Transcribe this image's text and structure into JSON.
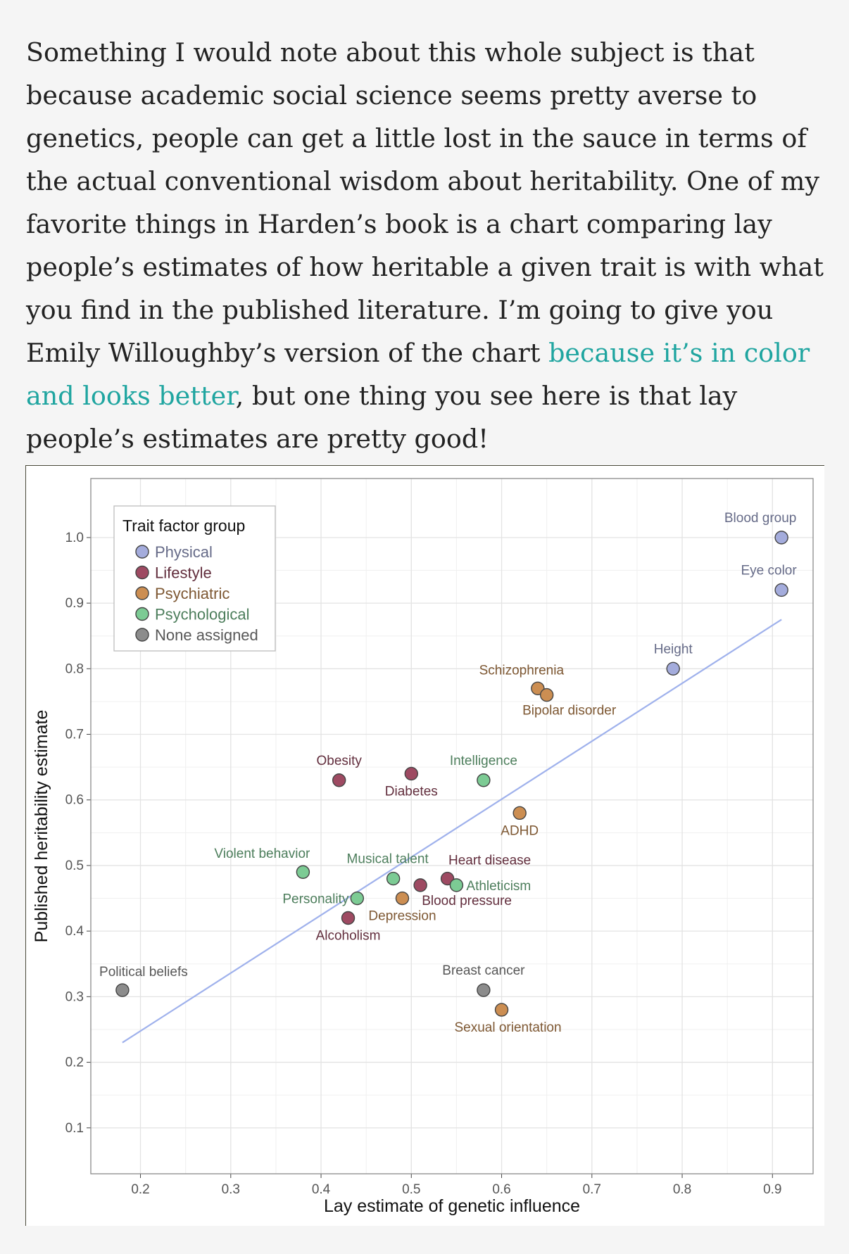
{
  "article": {
    "text_before": "Something I would note about this whole subject is that because academic social science seems pretty averse to genetics, people can get a little lost in the sauce in terms of the actual conventional wisdom about heritability. One of my favorite things in Harden’s book is a chart comparing lay people’s estimates of how heritable a given trait is with what you find in the published literature. I’m going to give you Emily Willoughby’s version of the chart ",
    "link_text": "because it’s in color and looks better",
    "text_after": ", but one thing you see here is that lay people’s estimates are pretty good!"
  },
  "colors": {
    "link": "#1fa5a0",
    "Physical": "#a4acdc",
    "Lifestyle": "#9e4a62",
    "Psychiatric": "#cc8e52",
    "Psychological": "#7ccb94",
    "None assigned": "#8c8c8c",
    "trend": "#9fb1ec"
  },
  "chart_data": {
    "type": "scatter",
    "xlabel": "Lay estimate of genetic influence",
    "ylabel": "Published heritability estimate",
    "xlim": [
      0.145,
      0.945
    ],
    "ylim": [
      0.03,
      1.09
    ],
    "xticks": [
      0.2,
      0.3,
      0.4,
      0.5,
      0.6,
      0.7,
      0.8,
      0.9
    ],
    "yticks": [
      0.1,
      0.2,
      0.3,
      0.4,
      0.5,
      0.6,
      0.7,
      0.8,
      0.9,
      1.0
    ],
    "xtick_labels": [
      "0.2",
      "0.3",
      "0.4",
      "0.5",
      "0.6",
      "0.7",
      "0.8",
      "0.9"
    ],
    "ytick_labels": [
      "0.1",
      "0.2",
      "0.3",
      "0.4",
      "0.5",
      "0.6",
      "0.7",
      "0.8",
      "0.9",
      "1.0"
    ],
    "grid": true,
    "legend": {
      "title": "Trait factor group",
      "placement": "top-left",
      "entries": [
        "Physical",
        "Lifestyle",
        "Psychiatric",
        "Psychological",
        "None assigned"
      ]
    },
    "trend_line": {
      "x": [
        0.18,
        0.91
      ],
      "y": [
        0.23,
        0.875
      ]
    },
    "points": [
      {
        "label": "Blood group",
        "x": 0.91,
        "y": 1.0,
        "group": "Physical",
        "label_pos": "above"
      },
      {
        "label": "Eye color",
        "x": 0.91,
        "y": 0.92,
        "group": "Physical",
        "label_pos": "above"
      },
      {
        "label": "Height",
        "x": 0.79,
        "y": 0.8,
        "group": "Physical",
        "label_pos": "above"
      },
      {
        "label": "Schizophrenia",
        "x": 0.64,
        "y": 0.77,
        "group": "Psychiatric",
        "label_pos": "above-left"
      },
      {
        "label": "Bipolar disorder",
        "x": 0.65,
        "y": 0.76,
        "group": "Psychiatric",
        "label_pos": "below-right"
      },
      {
        "label": "Obesity",
        "x": 0.42,
        "y": 0.63,
        "group": "Lifestyle",
        "label_pos": "above"
      },
      {
        "label": "Diabetes",
        "x": 0.5,
        "y": 0.64,
        "group": "Lifestyle",
        "label_pos": "below"
      },
      {
        "label": "Intelligence",
        "x": 0.58,
        "y": 0.63,
        "group": "Psychological",
        "label_pos": "above"
      },
      {
        "label": "ADHD",
        "x": 0.62,
        "y": 0.58,
        "group": "Psychiatric",
        "label_pos": "below"
      },
      {
        "label": "Violent behavior",
        "x": 0.38,
        "y": 0.49,
        "group": "Psychological",
        "label_pos": "above-left"
      },
      {
        "label": "Musical talent",
        "x": 0.48,
        "y": 0.48,
        "group": "Psychological",
        "label_pos": "above"
      },
      {
        "label": "Heart disease",
        "x": 0.54,
        "y": 0.48,
        "group": "Lifestyle",
        "label_pos": "above-right"
      },
      {
        "label": "Blood pressure",
        "x": 0.51,
        "y": 0.47,
        "group": "Lifestyle",
        "label_pos": "below-right"
      },
      {
        "label": "Athleticism",
        "x": 0.55,
        "y": 0.47,
        "group": "Psychological",
        "label_pos": "right"
      },
      {
        "label": "Personality",
        "x": 0.44,
        "y": 0.45,
        "group": "Psychological",
        "label_pos": "left"
      },
      {
        "label": "Depression",
        "x": 0.49,
        "y": 0.45,
        "group": "Psychiatric",
        "label_pos": "below"
      },
      {
        "label": "Alcoholism",
        "x": 0.43,
        "y": 0.42,
        "group": "Lifestyle",
        "label_pos": "below"
      },
      {
        "label": "Political beliefs",
        "x": 0.18,
        "y": 0.31,
        "group": "None assigned",
        "label_pos": "above-right"
      },
      {
        "label": "Breast cancer",
        "x": 0.58,
        "y": 0.31,
        "group": "None assigned",
        "label_pos": "above"
      },
      {
        "label": "Sexual orientation",
        "x": 0.6,
        "y": 0.28,
        "group": "Psychiatric",
        "label_pos": "below"
      }
    ]
  }
}
